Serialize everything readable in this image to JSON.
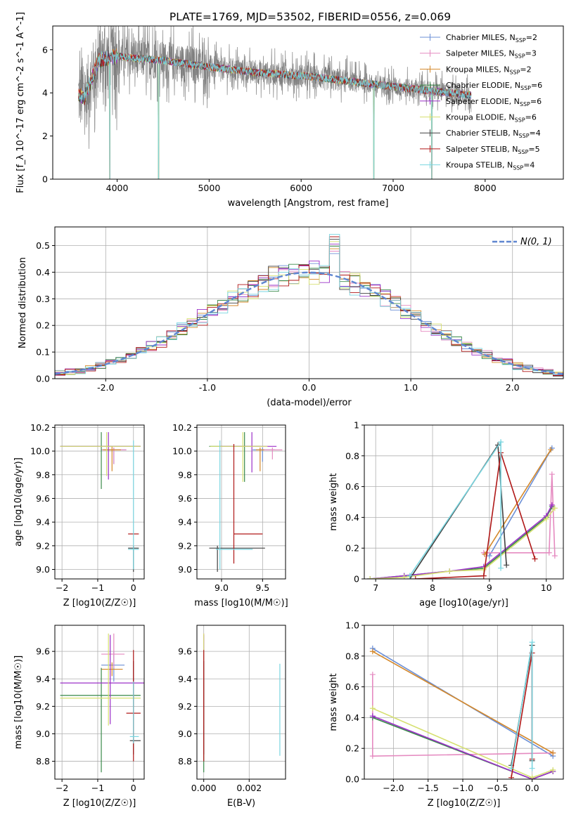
{
  "figure_title": "PLATE=1769, MJD=53502, FIBERID=0556, z=0.069",
  "colors": {
    "Chabrier MILES": "#6b8fd6",
    "Salpeter MILES": "#e58ac0",
    "Kroupa MILES": "#d4882a",
    "Chabrier ELODIE": "#3a8a4a",
    "Salpeter ELODIE": "#9b30c8",
    "Kroupa ELODIE": "#d6e070",
    "Chabrier STELIB": "#404040",
    "Salpeter STELIB": "#b01818",
    "Kroupa STELIB": "#7ad6e0",
    "data": "#808080",
    "gauss": "#5f86d0"
  },
  "chart_data": [
    {
      "id": "spectrum",
      "type": "line",
      "xlabel": "wavelength [Angstrom, rest frame]",
      "ylabel": "Flux [f_λ 10^-17 erg cm^-2 s^-1 A^-1]",
      "xlim": [
        3300,
        8850
      ],
      "ylim": [
        0,
        7.1
      ],
      "xticks": [
        4000,
        5000,
        6000,
        7000,
        8000
      ],
      "yticks": [
        0,
        2,
        4,
        6
      ],
      "grid": false,
      "legend_position": "top-right",
      "legend": [
        {
          "name": "Chabrier MILES",
          "label": "Chabrier MILES, N",
          "sub": "SSP",
          "tail": "=2"
        },
        {
          "name": "Salpeter MILES",
          "label": "Salpeter MILES, N",
          "sub": "SSP",
          "tail": "=3"
        },
        {
          "name": "Kroupa MILES",
          "label": "Kroupa MILES, N",
          "sub": "SSP",
          "tail": "=2"
        },
        {
          "name": "Chabrier ELODIE",
          "label": "Chabrier ELODIE, N",
          "sub": "SSP",
          "tail": "=6"
        },
        {
          "name": "Salpeter ELODIE",
          "label": "Salpeter ELODIE, N",
          "sub": "SSP",
          "tail": "=6"
        },
        {
          "name": "Kroupa ELODIE",
          "label": "Kroupa ELODIE, N",
          "sub": "SSP",
          "tail": "=6"
        },
        {
          "name": "Chabrier STELIB",
          "label": "Chabrier STELIB, N",
          "sub": "SSP",
          "tail": "=4"
        },
        {
          "name": "Salpeter STELIB",
          "label": "Salpeter STELIB, N",
          "sub": "SSP",
          "tail": "=5"
        },
        {
          "name": "Kroupa STELIB",
          "label": "Kroupa STELIB, N",
          "sub": "SSP",
          "tail": "=4"
        }
      ],
      "data_range": [
        3580,
        7850
      ],
      "model_knots": {
        "x": [
          3580,
          3650,
          3720,
          3800,
          3900,
          4000,
          4200,
          4500,
          5000,
          5500,
          6000,
          6500,
          7000,
          7500,
          7850
        ],
        "y": [
          3.9,
          3.8,
          4.6,
          5.5,
          5.6,
          5.7,
          5.6,
          5.5,
          5.2,
          4.95,
          4.8,
          4.55,
          4.3,
          4.05,
          3.9
        ]
      },
      "dips": [
        {
          "x": 3920,
          "y": 0.0
        },
        {
          "x": 4450,
          "y": 0.0
        },
        {
          "x": 6790,
          "y": 0.0
        },
        {
          "x": 7420,
          "y": 0.0
        }
      ]
    },
    {
      "id": "residuals",
      "type": "line",
      "xlabel": "(data-model)/error",
      "ylabel": "Normed distribution",
      "xlim": [
        -2.5,
        2.5
      ],
      "ylim": [
        0,
        0.57
      ],
      "xticks": [
        -2,
        -1,
        0,
        1,
        2
      ],
      "yticks": [
        0.0,
        0.1,
        0.2,
        0.3,
        0.4,
        0.5
      ],
      "grid": true,
      "legend_position": "top-right",
      "gauss_label": "N(0, 1)",
      "bin_width": 0.1
    },
    {
      "id": "age_vs_Z",
      "type": "scatter",
      "xlabel": "Z [log10(Z/Z☉)]",
      "ylabel": "age  [log10(age/yr)]",
      "xlim": [
        -2.2,
        0.3
      ],
      "ylim": [
        8.92,
        10.22
      ],
      "xticks": [
        -2,
        -1,
        0
      ],
      "yticks": [
        9.0,
        9.2,
        9.4,
        9.6,
        9.8,
        10.0,
        10.2
      ],
      "grid": true,
      "points": [
        {
          "m": "Chabrier MILES",
          "x": -0.55,
          "y": 10.01,
          "ex": [
            0.35,
            0.35
          ],
          "ey": [
            0.12,
            0.02
          ]
        },
        {
          "m": "Salpeter MILES",
          "x": -0.55,
          "y": 10.01,
          "ex": [
            0.35,
            0.35
          ],
          "ey": [
            0.12,
            0.02
          ]
        },
        {
          "m": "Kroupa MILES",
          "x": -0.6,
          "y": 10.01,
          "ex": [
            0.25,
            0.25
          ],
          "ey": [
            0.18,
            0.03
          ]
        },
        {
          "m": "Chabrier ELODIE",
          "x": -0.9,
          "y": 10.04,
          "ex": [
            1.15,
            1.1
          ],
          "ey": [
            0.36,
            0.12
          ]
        },
        {
          "m": "Salpeter ELODIE",
          "x": -0.7,
          "y": 10.04,
          "ex": [
            1.35,
            0.9
          ],
          "ey": [
            0.28,
            0.12
          ]
        },
        {
          "m": "Kroupa ELODIE",
          "x": -0.75,
          "y": 10.04,
          "ex": [
            1.3,
            0.95
          ],
          "ey": [
            0.25,
            0.12
          ]
        },
        {
          "m": "Chabrier STELIB",
          "x": 0.0,
          "y": 9.18,
          "ex": [
            0.15,
            0.15
          ],
          "ey": [
            0.2,
            0.02
          ]
        },
        {
          "m": "Salpeter STELIB",
          "x": 0.0,
          "y": 9.3,
          "ex": [
            0.15,
            0.15
          ],
          "ey": [
            0.0,
            0.0
          ]
        },
        {
          "m": "Kroupa STELIB",
          "x": 0.0,
          "y": 9.17,
          "ex": [
            0.15,
            0.15
          ],
          "ey": [
            0.17,
            0.92
          ]
        }
      ]
    },
    {
      "id": "age_vs_mass",
      "type": "scatter",
      "xlabel": "mass [log10(M/M☉)]",
      "ylabel": "",
      "xlim": [
        8.7,
        9.78
      ],
      "ylim": [
        8.92,
        10.22
      ],
      "xticks": [
        9.0,
        9.5
      ],
      "yticks": [
        9.0,
        9.2,
        9.4,
        9.6,
        9.8,
        10.0,
        10.2
      ],
      "grid": true,
      "points": [
        {
          "m": "Chabrier MILES",
          "x": 9.5,
          "y": 10.01,
          "ex": [
            0.12,
            0.15
          ],
          "ey": [
            0.1,
            0.02
          ]
        },
        {
          "m": "Salpeter MILES",
          "x": 9.62,
          "y": 10.01,
          "ex": [
            0.12,
            0.12
          ],
          "ey": [
            0.08,
            0.02
          ]
        },
        {
          "m": "Kroupa MILES",
          "x": 9.47,
          "y": 10.01,
          "ex": [
            0.05,
            0.05
          ],
          "ey": [
            0.18,
            0.02
          ]
        },
        {
          "m": "Chabrier ELODIE",
          "x": 9.28,
          "y": 10.04,
          "ex": [
            0.43,
            0.2
          ],
          "ey": [
            0.3,
            0.12
          ]
        },
        {
          "m": "Salpeter ELODIE",
          "x": 9.37,
          "y": 10.04,
          "ex": [
            0.4,
            0.3
          ],
          "ey": [
            0.22,
            0.12
          ]
        },
        {
          "m": "Kroupa ELODIE",
          "x": 9.26,
          "y": 10.04,
          "ex": [
            0.4,
            0.3
          ],
          "ey": [
            0.3,
            0.12
          ]
        },
        {
          "m": "Chabrier STELIB",
          "x": 8.95,
          "y": 9.18,
          "ex": [
            0.1,
            0.58
          ],
          "ey": [
            0.2,
            0.02
          ]
        },
        {
          "m": "Salpeter STELIB",
          "x": 9.15,
          "y": 9.3,
          "ex": [
            0.0,
            0.35
          ],
          "ey": [
            0.25,
            0.76
          ]
        },
        {
          "m": "Kroupa STELIB",
          "x": 8.98,
          "y": 9.17,
          "ex": [
            0.05,
            0.4
          ],
          "ey": [
            0.17,
            0.92
          ]
        }
      ]
    },
    {
      "id": "mass_weight_vs_age",
      "type": "line",
      "xlabel": "age  [log10(age/yr)]",
      "ylabel": "mass weight",
      "xlim": [
        6.8,
        10.3
      ],
      "ylim": [
        0,
        1.0
      ],
      "xticks": [
        7,
        8,
        9,
        10
      ],
      "yticks": [
        0.0,
        0.2,
        0.4,
        0.6,
        0.8,
        1.0
      ],
      "grid": true,
      "series": [
        {
          "name": "Chabrier MILES",
          "x": [
            9.0,
            10.1
          ],
          "y": [
            0.15,
            0.85
          ]
        },
        {
          "name": "Salpeter MILES",
          "x": [
            8.9,
            10.05,
            10.1,
            10.15
          ],
          "y": [
            0.17,
            0.17,
            0.68,
            0.15
          ]
        },
        {
          "name": "Kroupa MILES",
          "x": [
            8.92,
            10.08
          ],
          "y": [
            0.16,
            0.84
          ]
        },
        {
          "name": "Chabrier ELODIE",
          "x": [
            6.9,
            7.5,
            8.3,
            8.9,
            10.0,
            10.1
          ],
          "y": [
            0.0,
            0.02,
            0.05,
            0.07,
            0.4,
            0.47
          ]
        },
        {
          "name": "Salpeter ELODIE",
          "x": [
            6.9,
            7.5,
            8.3,
            8.9,
            10.0,
            10.1
          ],
          "y": [
            0.0,
            0.02,
            0.05,
            0.08,
            0.41,
            0.48
          ]
        },
        {
          "name": "Kroupa ELODIE",
          "x": [
            6.9,
            7.5,
            8.3,
            8.9,
            10.0,
            10.15
          ],
          "y": [
            0.0,
            0.01,
            0.05,
            0.06,
            0.39,
            0.46
          ]
        },
        {
          "name": "Chabrier STELIB",
          "x": [
            7.6,
            9.15,
            9.3
          ],
          "y": [
            0.0,
            0.87,
            0.09
          ]
        },
        {
          "name": "Salpeter STELIB",
          "x": [
            7.7,
            8.9,
            9.2,
            9.8
          ],
          "y": [
            0.0,
            0.02,
            0.82,
            0.13
          ]
        },
        {
          "name": "Kroupa STELIB",
          "x": [
            7.6,
            9.2,
            9.2
          ],
          "y": [
            0.02,
            0.89,
            0.07
          ]
        }
      ]
    },
    {
      "id": "mass_vs_Z",
      "type": "scatter",
      "xlabel": "Z [log10(Z/Z☉)]",
      "ylabel": "mass [log10(M/M☉)]",
      "xlim": [
        -2.2,
        0.3
      ],
      "ylim": [
        8.67,
        9.79
      ],
      "xticks": [
        -2,
        -1,
        0
      ],
      "yticks": [
        8.8,
        9.0,
        9.2,
        9.4,
        9.6
      ],
      "grid": true,
      "points": [
        {
          "m": "Chabrier MILES",
          "x": -0.55,
          "y": 9.5,
          "ex": [
            0.35,
            0.3
          ],
          "ey": [
            0.12,
            0.1
          ]
        },
        {
          "m": "Salpeter MILES",
          "x": -0.55,
          "y": 9.58,
          "ex": [
            0.35,
            0.3
          ],
          "ey": [
            0.1,
            0.15
          ]
        },
        {
          "m": "Kroupa MILES",
          "x": -0.6,
          "y": 9.47,
          "ex": [
            0.3,
            0.3
          ],
          "ey": [
            0.05,
            0.05
          ]
        },
        {
          "m": "Chabrier ELODIE",
          "x": -0.9,
          "y": 9.28,
          "ex": [
            1.15,
            1.1
          ],
          "ey": [
            0.56,
            0.2
          ]
        },
        {
          "m": "Salpeter ELODIE",
          "x": -0.65,
          "y": 9.37,
          "ex": [
            1.4,
            1.0
          ],
          "ey": [
            0.3,
            0.35
          ]
        },
        {
          "m": "Kroupa ELODIE",
          "x": -0.7,
          "y": 9.26,
          "ex": [
            1.35,
            0.9
          ],
          "ey": [
            0.2,
            0.47
          ]
        },
        {
          "m": "Chabrier STELIB",
          "x": 0.0,
          "y": 8.95,
          "ex": [
            0.1,
            0.2
          ],
          "ey": [
            0.1,
            0.58
          ]
        },
        {
          "m": "Salpeter STELIB",
          "x": 0.0,
          "y": 9.15,
          "ex": [
            0.2,
            0.2
          ],
          "ey": [
            0.35,
            0.46
          ]
        },
        {
          "m": "Kroupa STELIB",
          "x": 0.0,
          "y": 8.98,
          "ex": [
            0.1,
            0.15
          ],
          "ey": [
            0.05,
            0.4
          ]
        }
      ]
    },
    {
      "id": "mass_vs_ebv",
      "type": "scatter",
      "xlabel": "E(B-V)",
      "ylabel": "",
      "xlim": [
        -0.0003,
        0.0036
      ],
      "ylim": [
        8.67,
        9.79
      ],
      "xticks": [
        0.0,
        0.002
      ],
      "yticks": [
        8.8,
        9.0,
        9.2,
        9.4,
        9.6
      ],
      "grid": true,
      "points": [
        {
          "m": "Chabrier MILES",
          "x": 0.0,
          "y": 9.5,
          "ey": [
            0.12,
            0.1
          ]
        },
        {
          "m": "Salpeter MILES",
          "x": 0.0,
          "y": 9.58,
          "ey": [
            0.1,
            0.15
          ]
        },
        {
          "m": "Kroupa MILES",
          "x": 0.0,
          "y": 9.47,
          "ey": [
            0.05,
            0.05
          ]
        },
        {
          "m": "Chabrier ELODIE",
          "x": 0.0,
          "y": 9.28,
          "ey": [
            0.56,
            0.2
          ]
        },
        {
          "m": "Salpeter ELODIE",
          "x": 0.0,
          "y": 9.37,
          "ey": [
            0.3,
            0.35
          ]
        },
        {
          "m": "Kroupa ELODIE",
          "x": 0.0,
          "y": 9.26,
          "ey": [
            0.2,
            0.47
          ]
        },
        {
          "m": "Chabrier STELIB",
          "x": 0.0,
          "y": 8.95,
          "ey": [
            0.1,
            0.58
          ]
        },
        {
          "m": "Salpeter STELIB",
          "x": 0.0,
          "y": 9.15,
          "ey": [
            0.35,
            0.46
          ]
        },
        {
          "m": "Kroupa STELIB",
          "x": 0.00335,
          "y": 9.18,
          "ey": [
            0.34,
            0.33
          ]
        }
      ]
    },
    {
      "id": "mass_weight_vs_Z",
      "type": "line",
      "xlabel": "Z [log10(Z/Z☉)]",
      "ylabel": "mass weight",
      "xlim": [
        -2.42,
        0.45
      ],
      "ylim": [
        0,
        1.0
      ],
      "xticks": [
        -2.0,
        -1.5,
        -1.0,
        -0.5,
        0.0
      ],
      "yticks": [
        0.0,
        0.2,
        0.4,
        0.6,
        0.8,
        1.0
      ],
      "grid": true,
      "series": [
        {
          "name": "Chabrier MILES",
          "x": [
            -2.3,
            0.3
          ],
          "y": [
            0.85,
            0.15
          ]
        },
        {
          "name": "Salpeter MILES",
          "x": [
            -2.3,
            -2.3,
            0.3
          ],
          "y": [
            0.68,
            0.15,
            0.17
          ]
        },
        {
          "name": "Kroupa MILES",
          "x": [
            -2.3,
            0.3
          ],
          "y": [
            0.83,
            0.17
          ]
        },
        {
          "name": "Chabrier ELODIE",
          "x": [
            -2.3,
            0.0,
            0.3
          ],
          "y": [
            0.4,
            0.0,
            0.05
          ]
        },
        {
          "name": "Salpeter ELODIE",
          "x": [
            -2.3,
            0.0,
            0.3
          ],
          "y": [
            0.41,
            0.0,
            0.05
          ]
        },
        {
          "name": "Kroupa ELODIE",
          "x": [
            -2.3,
            0.0,
            0.3
          ],
          "y": [
            0.46,
            0.01,
            0.06
          ]
        },
        {
          "name": "Chabrier STELIB",
          "x": [
            -0.3,
            0.0,
            0.0
          ],
          "y": [
            0.09,
            0.87,
            0.12
          ]
        },
        {
          "name": "Salpeter STELIB",
          "x": [
            -0.3,
            0.0,
            0.0
          ],
          "y": [
            0.01,
            0.82,
            0.13
          ]
        },
        {
          "name": "Kroupa STELIB",
          "x": [
            -0.3,
            0.0,
            0.0
          ],
          "y": [
            0.07,
            0.89,
            0.07
          ]
        }
      ]
    }
  ]
}
